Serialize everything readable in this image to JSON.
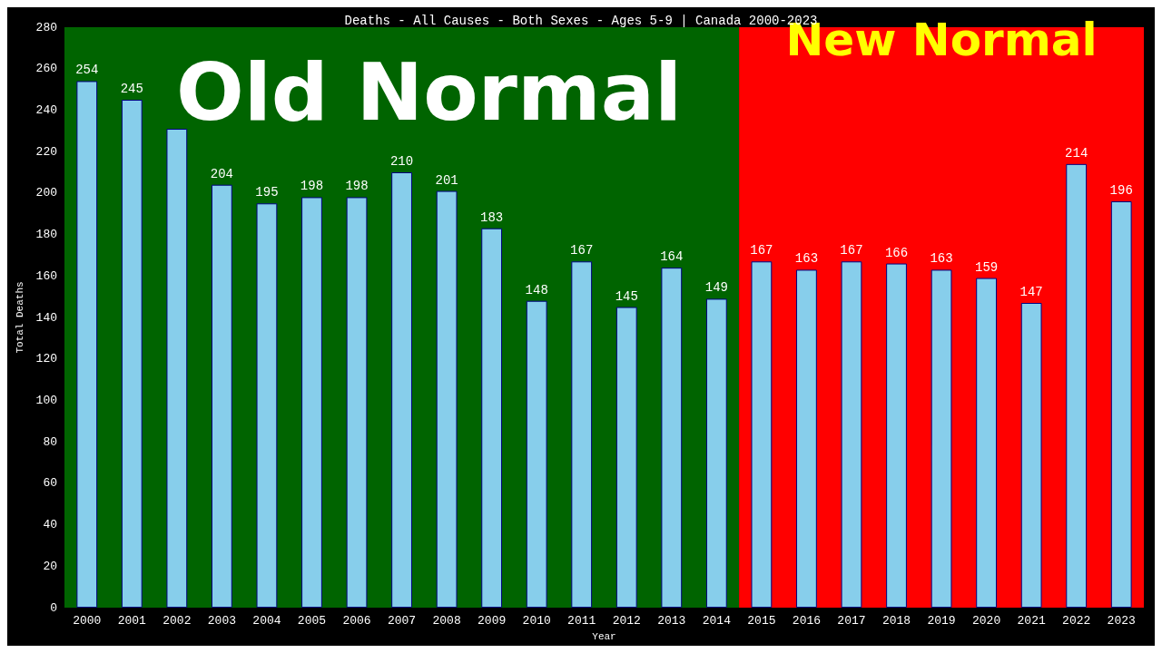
{
  "chart_data": {
    "type": "bar",
    "title": "Deaths - All Causes - Both Sexes - Ages 5-9 | Canada 2000-2023",
    "xlabel": "Year",
    "ylabel": "Total Deaths",
    "categories": [
      "2000",
      "2001",
      "2002",
      "2003",
      "2004",
      "2005",
      "2006",
      "2007",
      "2008",
      "2009",
      "2010",
      "2011",
      "2012",
      "2013",
      "2014",
      "2015",
      "2016",
      "2017",
      "2018",
      "2019",
      "2020",
      "2021",
      "2022",
      "2023"
    ],
    "values": [
      254,
      245,
      231,
      204,
      195,
      198,
      198,
      210,
      201,
      183,
      148,
      167,
      145,
      164,
      149,
      167,
      163,
      167,
      166,
      163,
      159,
      147,
      214,
      196
    ],
    "color": "#87ceeb",
    "value_labels": [
      "254",
      "245",
      null,
      "204",
      "195",
      "198",
      "198",
      "210",
      "201",
      "183",
      "148",
      "167",
      "145",
      "164",
      "149",
      "167",
      "163",
      "167",
      "166",
      "163",
      "159",
      "147",
      "214",
      "196"
    ],
    "ylim": [
      0,
      280
    ],
    "yticks": [
      0,
      20,
      40,
      60,
      80,
      100,
      120,
      140,
      160,
      180,
      200,
      220,
      240,
      260,
      280
    ],
    "grid": false,
    "bands": [
      {
        "axis": "x",
        "from": "2000",
        "to": "2014",
        "label": "Old Normal",
        "color": "#006400"
      },
      {
        "axis": "x",
        "from": "2015",
        "to": "2023",
        "label": "New Normal",
        "color": "#ff0000"
      }
    ]
  }
}
